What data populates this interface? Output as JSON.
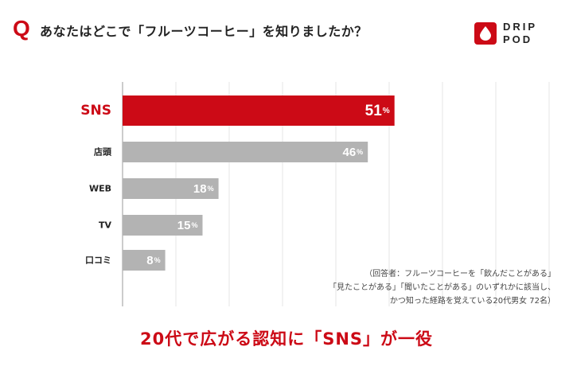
{
  "header": {
    "q_mark": "Q",
    "question": "あなたはどこで「フルーツコーヒー」を知りましたか？",
    "logo_line1": "DRIP",
    "logo_line2": "POD",
    "logo_icon": "drop-icon",
    "brand_color": "#cc0a16"
  },
  "chart_data": {
    "type": "bar",
    "orientation": "horizontal",
    "categories": [
      "SNS",
      "店頭",
      "WEB",
      "TV",
      "口コミ"
    ],
    "values": [
      51,
      46,
      18,
      15,
      8
    ],
    "value_labels": [
      "51",
      "46",
      "18",
      "15",
      "8"
    ],
    "value_suffix": "%",
    "highlight_index": 0,
    "colors": {
      "highlight": "#cc0a16",
      "default": "#b3b3b3",
      "grid": "#e6e6e6",
      "axis": "#999999"
    },
    "xlim": [
      0,
      80
    ],
    "grid": true,
    "title": "",
    "xlabel": "",
    "ylabel": ""
  },
  "footnote": {
    "lines": [
      "（回答者：フルーツコーヒーを「飲んだことがある」",
      "「見たことがある」「聞いたことがある」のいずれかに該当し、",
      "かつ知った経路を覚えている20代男女 72名）"
    ]
  },
  "headline": "20代で広がる認知に「SNS」が一役"
}
